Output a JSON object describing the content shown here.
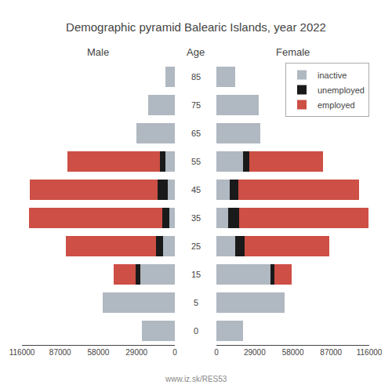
{
  "chart_data": {
    "type": "bar",
    "title": "Demographic pyramid Balearic Islands, year 2022",
    "orientation": "horizontal",
    "stacked": true,
    "grid": false,
    "legend": "upper right",
    "category_label": "Age",
    "categories": [
      85,
      75,
      65,
      55,
      45,
      35,
      25,
      15,
      5,
      0
    ],
    "annotations": [
      {
        "text": "www.iz.sk/RES53"
      }
    ],
    "panels": [
      {
        "title": "Male",
        "xlim": [
          116000,
          0
        ],
        "xticks": [
          116000,
          87000,
          58000,
          29000,
          0
        ],
        "series": [
          {
            "name": "inactive",
            "color": "#b0b8c1",
            "values": [
              7000,
              20000,
              29000,
              7000,
              5500,
              4000,
              9000,
              26000,
              55000,
              25000
            ]
          },
          {
            "name": "unemployed",
            "color": "#1a1a1a",
            "values": [
              0,
              0,
              0,
              4500,
              7500,
              5500,
              5500,
              3500,
              0,
              0
            ]
          },
          {
            "name": "employed",
            "color": "#cd4f45",
            "values": [
              0,
              0,
              0,
              70000,
              97000,
              101000,
              68000,
              17000,
              0,
              0
            ]
          }
        ]
      },
      {
        "title": "Female",
        "xlim": [
          0,
          116000
        ],
        "xticks": [
          0,
          29000,
          58000,
          87000,
          116000
        ],
        "series": [
          {
            "name": "inactive",
            "color": "#b0b8c1",
            "values": [
              14000,
              32000,
              33000,
              20000,
              10000,
              9000,
              14000,
              41000,
              52000,
              20000
            ]
          },
          {
            "name": "unemployed",
            "color": "#1a1a1a",
            "values": [
              0,
              0,
              0,
              5000,
              6500,
              8500,
              7500,
              3000,
              0,
              0
            ]
          },
          {
            "name": "employed",
            "color": "#cd4f45",
            "values": [
              0,
              0,
              0,
              56000,
              92000,
              98000,
              64000,
              13000,
              0,
              0
            ]
          }
        ]
      }
    ]
  }
}
